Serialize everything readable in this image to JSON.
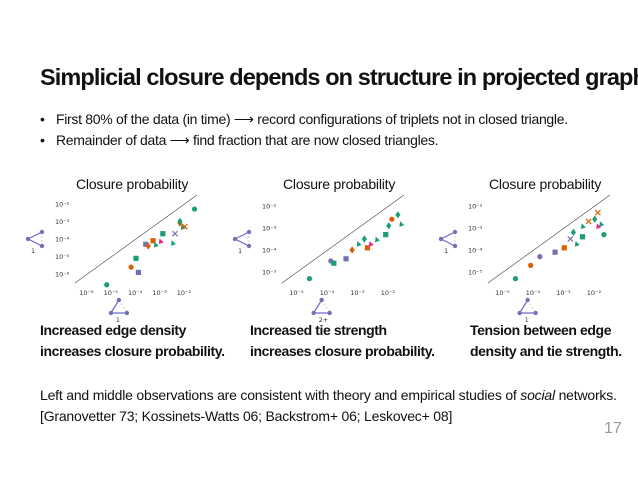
{
  "title": "Simplicial closure depends on structure in projected graph.",
  "bullets": [
    "First 80% of the data (in time) ⟶ record configurations of triplets not in closed triangle.",
    "Remainder of data ⟶ find fraction that are now closed triangles."
  ],
  "panels": [
    {
      "title": "Closure probability",
      "caption_lines": [
        "Increased edge density",
        "increases closure probability."
      ],
      "yticks": [
        "10⁻²",
        "10⁻³",
        "10⁻⁴",
        "10⁻⁵",
        "10⁻⁶"
      ],
      "xticks": [
        "10⁻⁶",
        "10⁻⁵",
        "10⁻⁴",
        "10⁻³",
        "10⁻²"
      ],
      "side_label": "1",
      "bottom_label": "1"
    },
    {
      "title": "Closure probability",
      "caption_lines": [
        "Increased tie strength",
        "increases closure probability."
      ],
      "yticks": [
        "10⁻²",
        "10⁻³",
        "10⁻⁴",
        "10⁻⁵"
      ],
      "xticks": [
        "10⁻⁵",
        "10⁻⁴",
        "10⁻³",
        "10⁻²"
      ],
      "side_label": "1",
      "bottom_label": "2+"
    },
    {
      "title": "Closure probability",
      "caption_lines": [
        "Tension between edge",
        "density and tie strength."
      ],
      "yticks": [
        "10⁻²",
        "10⁻³",
        "10⁻⁴",
        "10⁻⁵"
      ],
      "xticks": [
        "10⁻⁵",
        "10⁻⁴",
        "10⁻³",
        "10⁻²"
      ],
      "side_label": "1",
      "bottom_label": "1"
    }
  ],
  "footer_parts": {
    "before": "Left and middle observations are consistent with theory and empirical studies of ",
    "italic": "social",
    "after": " networks.",
    "line2": "[Granovetter 73; Kossinets-Watts 06; Backstrom+ 06; Leskovec+ 08]"
  },
  "page_number": "17",
  "marker_colors": {
    "green": "#1a9e77",
    "orange": "#d95f02",
    "purple": "#7570b3",
    "pink": "#e7298a"
  },
  "chart_data": [
    {
      "type": "scatter",
      "title": "Closure probability",
      "xscale": "log",
      "yscale": "log",
      "xlim_exp": [
        -6.5,
        -1.5
      ],
      "ylim_exp": [
        -6.5,
        -1.5
      ],
      "diagonal": true,
      "points": [
        {
          "x_exp": -5.2,
          "y_exp": -6.6,
          "shape": "circle",
          "color": "green"
        },
        {
          "x_exp": -4.2,
          "y_exp": -5.6,
          "shape": "circle",
          "color": "orange"
        },
        {
          "x_exp": -3.9,
          "y_exp": -5.9,
          "shape": "square",
          "color": "purple"
        },
        {
          "x_exp": -4.0,
          "y_exp": -5.1,
          "shape": "square",
          "color": "green"
        },
        {
          "x_exp": -3.6,
          "y_exp": -4.3,
          "shape": "square",
          "color": "purple"
        },
        {
          "x_exp": -3.5,
          "y_exp": -4.4,
          "shape": "diamond",
          "color": "orange"
        },
        {
          "x_exp": -3.3,
          "y_exp": -4.1,
          "shape": "square",
          "color": "orange"
        },
        {
          "x_exp": -3.2,
          "y_exp": -4.3,
          "shape": "triangle",
          "color": "green"
        },
        {
          "x_exp": -3.0,
          "y_exp": -4.1,
          "shape": "triangle",
          "color": "pink"
        },
        {
          "x_exp": -2.9,
          "y_exp": -3.7,
          "shape": "square",
          "color": "green"
        },
        {
          "x_exp": -2.5,
          "y_exp": -4.2,
          "shape": "triangle",
          "color": "green"
        },
        {
          "x_exp": -2.4,
          "y_exp": -3.7,
          "shape": "cross",
          "color": "purple"
        },
        {
          "x_exp": -2.2,
          "y_exp": -3.1,
          "shape": "diamond",
          "color": "orange"
        },
        {
          "x_exp": -2.1,
          "y_exp": -3.3,
          "shape": "triangle",
          "color": "green"
        },
        {
          "x_exp": -2.0,
          "y_exp": -3.3,
          "shape": "cross",
          "color": "orange"
        },
        {
          "x_exp": -1.6,
          "y_exp": -2.3,
          "shape": "circle",
          "color": "green"
        },
        {
          "x_exp": -2.2,
          "y_exp": -3.0,
          "shape": "diamond",
          "color": "green"
        }
      ]
    },
    {
      "type": "scatter",
      "title": "Closure probability",
      "xscale": "log",
      "yscale": "log",
      "xlim_exp": [
        -5.5,
        -1.5
      ],
      "ylim_exp": [
        -5.5,
        -1.5
      ],
      "diagonal": true,
      "points": [
        {
          "x_exp": -4.6,
          "y_exp": -5.3,
          "shape": "circle",
          "color": "green"
        },
        {
          "x_exp": -3.9,
          "y_exp": -4.5,
          "shape": "circle",
          "color": "purple"
        },
        {
          "x_exp": -3.8,
          "y_exp": -4.6,
          "shape": "square",
          "color": "green"
        },
        {
          "x_exp": -3.4,
          "y_exp": -4.4,
          "shape": "square",
          "color": "purple"
        },
        {
          "x_exp": -3.2,
          "y_exp": -4.0,
          "shape": "diamond",
          "color": "orange"
        },
        {
          "x_exp": -3.0,
          "y_exp": -3.7,
          "shape": "triangle",
          "color": "green"
        },
        {
          "x_exp": -2.8,
          "y_exp": -3.5,
          "shape": "diamond",
          "color": "green"
        },
        {
          "x_exp": -2.7,
          "y_exp": -3.9,
          "shape": "square",
          "color": "orange"
        },
        {
          "x_exp": -2.6,
          "y_exp": -3.7,
          "shape": "triangle",
          "color": "pink"
        },
        {
          "x_exp": -2.4,
          "y_exp": -3.5,
          "shape": "triangle",
          "color": "green"
        },
        {
          "x_exp": -2.1,
          "y_exp": -3.3,
          "shape": "square",
          "color": "green"
        },
        {
          "x_exp": -2.0,
          "y_exp": -2.9,
          "shape": "diamond",
          "color": "green"
        },
        {
          "x_exp": -1.9,
          "y_exp": -2.6,
          "shape": "circle",
          "color": "orange"
        },
        {
          "x_exp": -1.7,
          "y_exp": -2.4,
          "shape": "diamond",
          "color": "green"
        },
        {
          "x_exp": -1.6,
          "y_exp": -2.8,
          "shape": "triangle",
          "color": "green"
        }
      ]
    },
    {
      "type": "scatter",
      "title": "Closure probability",
      "xscale": "log",
      "yscale": "log",
      "xlim_exp": [
        -5.5,
        -1.5
      ],
      "ylim_exp": [
        -5.5,
        -1.5
      ],
      "diagonal": true,
      "points": [
        {
          "x_exp": -4.6,
          "y_exp": -5.3,
          "shape": "circle",
          "color": "green"
        },
        {
          "x_exp": -4.1,
          "y_exp": -4.7,
          "shape": "circle",
          "color": "orange"
        },
        {
          "x_exp": -3.8,
          "y_exp": -4.3,
          "shape": "circle",
          "color": "purple"
        },
        {
          "x_exp": -3.3,
          "y_exp": -4.1,
          "shape": "square",
          "color": "purple"
        },
        {
          "x_exp": -3.0,
          "y_exp": -3.9,
          "shape": "square",
          "color": "orange"
        },
        {
          "x_exp": -2.8,
          "y_exp": -3.5,
          "shape": "cross",
          "color": "purple"
        },
        {
          "x_exp": -2.6,
          "y_exp": -3.7,
          "shape": "triangle",
          "color": "green"
        },
        {
          "x_exp": -2.7,
          "y_exp": -3.2,
          "shape": "diamond",
          "color": "green"
        },
        {
          "x_exp": -2.4,
          "y_exp": -3.4,
          "shape": "square",
          "color": "green"
        },
        {
          "x_exp": -2.4,
          "y_exp": -2.9,
          "shape": "triangle",
          "color": "green"
        },
        {
          "x_exp": -2.2,
          "y_exp": -2.7,
          "shape": "cross",
          "color": "orange"
        },
        {
          "x_exp": -2.0,
          "y_exp": -2.6,
          "shape": "diamond",
          "color": "green"
        },
        {
          "x_exp": -1.9,
          "y_exp": -2.9,
          "shape": "triangle",
          "color": "pink"
        },
        {
          "x_exp": -1.8,
          "y_exp": -2.8,
          "shape": "triangle",
          "color": "green"
        },
        {
          "x_exp": -1.7,
          "y_exp": -3.3,
          "shape": "circle",
          "color": "green"
        },
        {
          "x_exp": -1.9,
          "y_exp": -2.3,
          "shape": "cross",
          "color": "orange"
        }
      ]
    }
  ]
}
